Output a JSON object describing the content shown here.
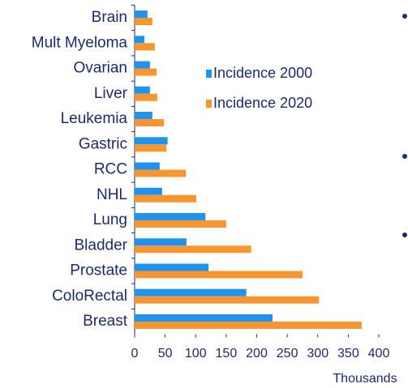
{
  "chart_data": {
    "type": "hbar",
    "categories": [
      "Brain",
      "Mult Myeloma",
      "Ovarian",
      "Liver",
      "Leukemia",
      "Gastric",
      "RCC",
      "NHL",
      "Lung",
      "Bladder",
      "Prostate",
      "ColoRectal",
      "Breast"
    ],
    "series": [
      {
        "name": "Incidence 2000",
        "color": "#1f93f0",
        "values": [
          21,
          16,
          25,
          25,
          29,
          54,
          41,
          45,
          116,
          85,
          121,
          183,
          226
        ]
      },
      {
        "name": "Incidence 2020",
        "color": "#f7962f",
        "values": [
          29,
          33,
          36,
          37,
          48,
          52,
          84,
          101,
          150,
          191,
          275,
          302,
          372
        ]
      }
    ],
    "xlabel": "Thousands",
    "xlim": [
      0,
      400
    ],
    "xticks": [
      0,
      50,
      100,
      150,
      200,
      250,
      300,
      350,
      400
    ]
  }
}
